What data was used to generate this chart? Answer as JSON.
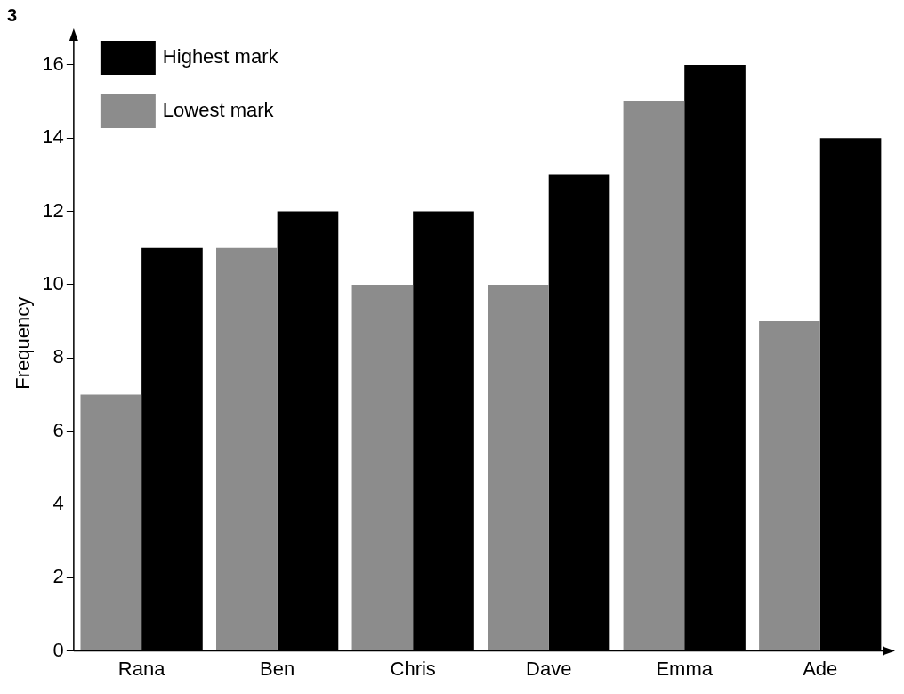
{
  "chart_data": {
    "type": "bar",
    "ylabel": "Frequency",
    "annotations": [
      "3"
    ],
    "categories": [
      "Rana",
      "Ben",
      "Chris",
      "Dave",
      "Emma",
      "Ade"
    ],
    "series": [
      {
        "name": "Lowest mark",
        "color": "#8c8c8c",
        "values": [
          7,
          11,
          10,
          10,
          15,
          9
        ]
      },
      {
        "name": "Highest mark",
        "color": "#000000",
        "values": [
          11,
          12,
          12,
          13,
          16,
          14
        ]
      }
    ],
    "ylim": [
      0,
      16.8
    ],
    "yticks": [
      0,
      2,
      4,
      6,
      8,
      10,
      12,
      14,
      16
    ],
    "grid": false,
    "legend": "top left"
  }
}
